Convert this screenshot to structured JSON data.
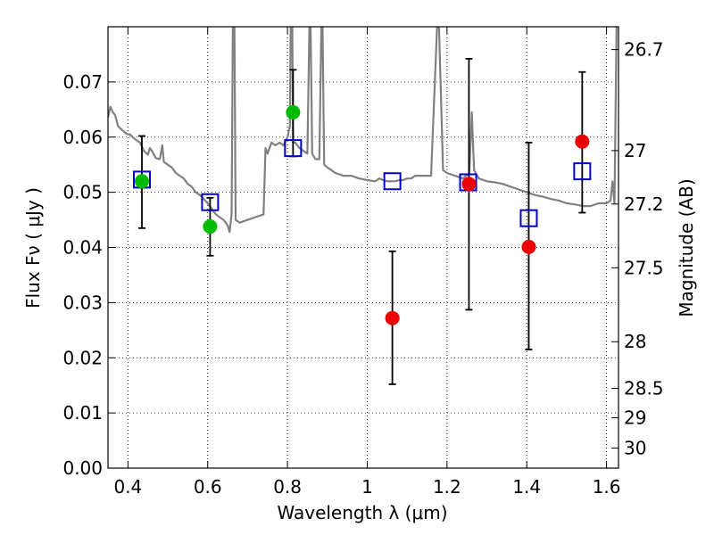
{
  "chart_data": {
    "type": "scatter",
    "xlabel": "Wavelength  λ (μm)",
    "ylabel": "Flux  Fν  ( μJy )",
    "y2label": "Magnitude (AB)",
    "xlim": [
      0.35,
      1.63
    ],
    "ylim": [
      0.0,
      0.08
    ],
    "grid": true,
    "x_ticks": [
      {
        "value": 0.4,
        "label": "0.4"
      },
      {
        "value": 0.6,
        "label": "0.6"
      },
      {
        "value": 0.8,
        "label": "0.8"
      },
      {
        "value": 1.0,
        "label": "1"
      },
      {
        "value": 1.2,
        "label": "1.2"
      },
      {
        "value": 1.4,
        "label": "1.4"
      },
      {
        "value": 1.6,
        "label": "1.6"
      }
    ],
    "y_ticks": [
      {
        "value": 0.0,
        "label": "0.00"
      },
      {
        "value": 0.01,
        "label": "0.01"
      },
      {
        "value": 0.02,
        "label": "0.02"
      },
      {
        "value": 0.03,
        "label": "0.03"
      },
      {
        "value": 0.04,
        "label": "0.04"
      },
      {
        "value": 0.05,
        "label": "0.05"
      },
      {
        "value": 0.06,
        "label": "0.06"
      },
      {
        "value": 0.07,
        "label": "0.07"
      }
    ],
    "y2_ticks": [
      {
        "value": 26.7,
        "label": "26.7"
      },
      {
        "value": 27.0,
        "label": "27"
      },
      {
        "value": 27.2,
        "label": "27.2"
      },
      {
        "value": 27.5,
        "label": "27.5"
      },
      {
        "value": 28.0,
        "label": "28"
      },
      {
        "value": 28.5,
        "label": "28.5"
      },
      {
        "value": 29.0,
        "label": "29"
      },
      {
        "value": 30.0,
        "label": "30"
      }
    ],
    "model_spectrum": {
      "color": "#808080",
      "points": [
        [
          0.35,
          0.0635
        ],
        [
          0.356,
          0.0655
        ],
        [
          0.362,
          0.0645
        ],
        [
          0.368,
          0.064
        ],
        [
          0.375,
          0.062
        ],
        [
          0.382,
          0.0615
        ],
        [
          0.39,
          0.061
        ],
        [
          0.398,
          0.0605
        ],
        [
          0.405,
          0.0605
        ],
        [
          0.412,
          0.06
        ],
        [
          0.42,
          0.0595
        ],
        [
          0.43,
          0.059
        ],
        [
          0.44,
          0.0575
        ],
        [
          0.45,
          0.0568
        ],
        [
          0.455,
          0.058
        ],
        [
          0.46,
          0.0575
        ],
        [
          0.47,
          0.0562
        ],
        [
          0.48,
          0.056
        ],
        [
          0.486,
          0.0585
        ],
        [
          0.49,
          0.0555
        ],
        [
          0.5,
          0.055
        ],
        [
          0.51,
          0.0545
        ],
        [
          0.52,
          0.0535
        ],
        [
          0.53,
          0.053
        ],
        [
          0.54,
          0.0525
        ],
        [
          0.55,
          0.0515
        ],
        [
          0.56,
          0.051
        ],
        [
          0.57,
          0.05
        ],
        [
          0.58,
          0.0495
        ],
        [
          0.59,
          0.0488
        ],
        [
          0.6,
          0.048
        ],
        [
          0.61,
          0.047
        ],
        [
          0.62,
          0.046
        ],
        [
          0.63,
          0.0455
        ],
        [
          0.64,
          0.045
        ],
        [
          0.65,
          0.044
        ],
        [
          0.655,
          0.0428
        ],
        [
          0.66,
          0.046
        ],
        [
          0.663,
          0.08
        ],
        [
          0.667,
          0.08
        ],
        [
          0.67,
          0.045
        ],
        [
          0.68,
          0.0445
        ],
        [
          0.7,
          0.045
        ],
        [
          0.72,
          0.0455
        ],
        [
          0.74,
          0.046
        ],
        [
          0.745,
          0.058
        ],
        [
          0.75,
          0.057
        ],
        [
          0.76,
          0.059
        ],
        [
          0.77,
          0.0585
        ],
        [
          0.78,
          0.059
        ],
        [
          0.79,
          0.0585
        ],
        [
          0.8,
          0.06
        ],
        [
          0.806,
          0.062
        ],
        [
          0.808,
          0.08
        ],
        [
          0.812,
          0.08
        ],
        [
          0.814,
          0.059
        ],
        [
          0.82,
          0.059
        ],
        [
          0.83,
          0.058
        ],
        [
          0.84,
          0.0575
        ],
        [
          0.85,
          0.057
        ],
        [
          0.855,
          0.08
        ],
        [
          0.858,
          0.08
        ],
        [
          0.862,
          0.057
        ],
        [
          0.87,
          0.056
        ],
        [
          0.88,
          0.056
        ],
        [
          0.885,
          0.08
        ],
        [
          0.888,
          0.08
        ],
        [
          0.892,
          0.055
        ],
        [
          0.9,
          0.0545
        ],
        [
          0.91,
          0.054
        ],
        [
          0.92,
          0.0535
        ],
        [
          0.94,
          0.053
        ],
        [
          0.96,
          0.053
        ],
        [
          0.98,
          0.0525
        ],
        [
          1.0,
          0.0522
        ],
        [
          1.02,
          0.052
        ],
        [
          1.03,
          0.0525
        ],
        [
          1.04,
          0.0522
        ],
        [
          1.05,
          0.052
        ],
        [
          1.06,
          0.052
        ],
        [
          1.07,
          0.052
        ],
        [
          1.08,
          0.0522
        ],
        [
          1.09,
          0.0522
        ],
        [
          1.1,
          0.0525
        ],
        [
          1.11,
          0.0525
        ],
        [
          1.12,
          0.053
        ],
        [
          1.14,
          0.053
        ],
        [
          1.16,
          0.053
        ],
        [
          1.175,
          0.08
        ],
        [
          1.18,
          0.08
        ],
        [
          1.19,
          0.054
        ],
        [
          1.2,
          0.0535
        ],
        [
          1.22,
          0.053
        ],
        [
          1.24,
          0.0525
        ],
        [
          1.256,
          0.0535
        ],
        [
          1.262,
          0.0645
        ],
        [
          1.268,
          0.054
        ],
        [
          1.28,
          0.0525
        ],
        [
          1.3,
          0.052
        ],
        [
          1.32,
          0.0518
        ],
        [
          1.34,
          0.0515
        ],
        [
          1.36,
          0.051
        ],
        [
          1.38,
          0.0505
        ],
        [
          1.4,
          0.05
        ],
        [
          1.42,
          0.0495
        ],
        [
          1.44,
          0.0492
        ],
        [
          1.46,
          0.0488
        ],
        [
          1.48,
          0.0485
        ],
        [
          1.5,
          0.048
        ],
        [
          1.52,
          0.0478
        ],
        [
          1.54,
          0.0475
        ],
        [
          1.56,
          0.0475
        ],
        [
          1.58,
          0.048
        ],
        [
          1.6,
          0.048
        ],
        [
          1.61,
          0.0485
        ],
        [
          1.615,
          0.052
        ],
        [
          1.62,
          0.048
        ],
        [
          1.625,
          0.08
        ]
      ]
    },
    "model_photometry": {
      "marker": "open-square",
      "color": "#0000cc",
      "points": [
        [
          0.435,
          0.0523
        ],
        [
          0.606,
          0.0482
        ],
        [
          0.814,
          0.058
        ],
        [
          1.063,
          0.052
        ],
        [
          1.253,
          0.0518
        ],
        [
          1.405,
          0.0453
        ],
        [
          1.539,
          0.0538
        ]
      ]
    },
    "detections": {
      "marker": "filled-circle",
      "color": "#00bb00",
      "points": [
        {
          "x": 0.435,
          "y": 0.052,
          "yerr_low": 0.0435,
          "yerr_high": 0.0602
        },
        {
          "x": 0.606,
          "y": 0.0438,
          "yerr_low": 0.0385,
          "yerr_high": 0.049
        },
        {
          "x": 0.814,
          "y": 0.0645,
          "yerr_low": 0.0565,
          "yerr_high": 0.0722
        }
      ]
    },
    "non_detections": {
      "marker": "filled-circle",
      "color": "#ee0000",
      "points": [
        {
          "x": 1.063,
          "y": 0.0272,
          "yerr_low": 0.0152,
          "yerr_high": 0.0393
        },
        {
          "x": 1.255,
          "y": 0.0515,
          "yerr_low": 0.0287,
          "yerr_high": 0.0742
        },
        {
          "x": 1.405,
          "y": 0.0401,
          "yerr_low": 0.0215,
          "yerr_high": 0.059
        },
        {
          "x": 1.539,
          "y": 0.0592,
          "yerr_low": 0.0463,
          "yerr_high": 0.0718
        }
      ]
    }
  }
}
